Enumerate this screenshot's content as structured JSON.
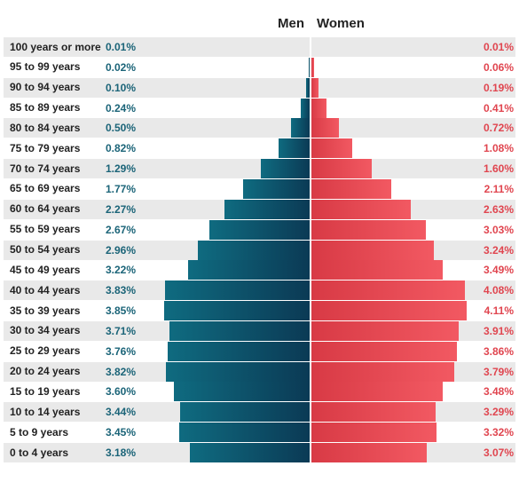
{
  "chart_data": {
    "type": "bar",
    "orientation": "horizontal",
    "layout": "population-pyramid",
    "headers": {
      "men": "Men",
      "women": "Women"
    },
    "categories": [
      "100 years or more",
      "95 to 99 years",
      "90 to 94 years",
      "85 to 89 years",
      "80 to 84 years",
      "75 to 79 years",
      "70 to 74 years",
      "65 to 69 years",
      "60 to 64 years",
      "55 to 59 years",
      "50 to 54 years",
      "45 to 49 years",
      "40 to 44 years",
      "35 to 39 years",
      "30 to 34 years",
      "25 to 29 years",
      "20 to 24 years",
      "15 to 19 years",
      "10 to 14 years",
      "5 to 9 years",
      "0 to 4 years"
    ],
    "series": [
      {
        "name": "Men",
        "values": [
          0.01,
          0.02,
          0.1,
          0.24,
          0.5,
          0.82,
          1.29,
          1.77,
          2.27,
          2.67,
          2.96,
          3.22,
          3.83,
          3.85,
          3.71,
          3.76,
          3.82,
          3.6,
          3.44,
          3.45,
          3.18
        ],
        "labels": [
          "0.01%",
          "0.02%",
          "0.10%",
          "0.24%",
          "0.50%",
          "0.82%",
          "1.29%",
          "1.77%",
          "2.27%",
          "2.67%",
          "2.96%",
          "3.22%",
          "3.83%",
          "3.85%",
          "3.71%",
          "3.76%",
          "3.82%",
          "3.60%",
          "3.44%",
          "3.45%",
          "3.18%"
        ],
        "color": "#0f6b80",
        "label_color": "#1b6478"
      },
      {
        "name": "Women",
        "values": [
          0.01,
          0.06,
          0.19,
          0.41,
          0.72,
          1.08,
          1.6,
          2.11,
          2.63,
          3.03,
          3.24,
          3.49,
          4.08,
          4.11,
          3.91,
          3.86,
          3.79,
          3.48,
          3.29,
          3.32,
          3.07
        ],
        "labels": [
          "0.01%",
          "0.06%",
          "0.19%",
          "0.41%",
          "0.72%",
          "1.08%",
          "1.60%",
          "2.11%",
          "2.63%",
          "3.03%",
          "3.24%",
          "3.49%",
          "4.08%",
          "4.11%",
          "3.91%",
          "3.86%",
          "3.79%",
          "3.48%",
          "3.29%",
          "3.32%",
          "3.07%"
        ],
        "color": "#e0454f",
        "label_color": "#e0454f"
      }
    ],
    "xlim": [
      0,
      4.2
    ],
    "row_shading": "alternating",
    "shade_color": "#e9e9e9"
  }
}
